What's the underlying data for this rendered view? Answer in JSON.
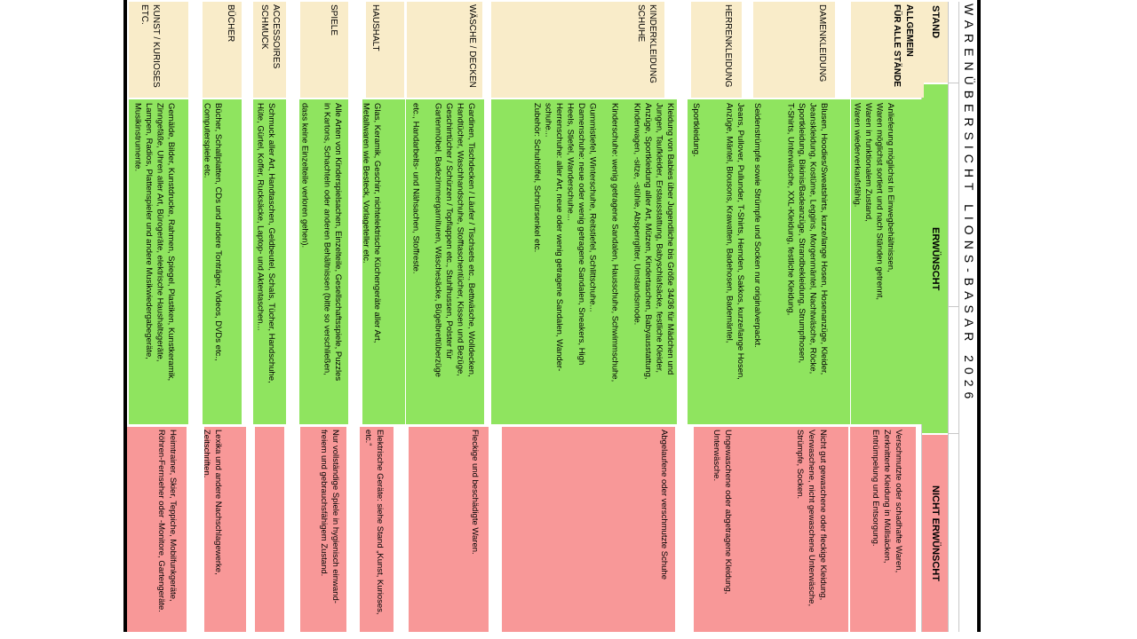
{
  "title": "WARENÜBERSICHT LIONS-BASAR 2026",
  "header": {
    "stand": "STAND",
    "erwuenscht": "ERWÜNSCHT",
    "nicht_erwuenscht": "NICHT ERWÜNSCHT"
  },
  "colors": {
    "cream": "#F9ECC9",
    "green": "#8FE45F",
    "pink": "#F89898",
    "grid": "#C8C8C8",
    "border": "#000000"
  },
  "rows": [
    {
      "id": "allgemein",
      "label_lines": [
        "ALLGEMEIN",
        "FÜR ALLE STÄNDE"
      ],
      "bold_label": true,
      "erwuenscht_lines": [
        "Anlieferung möglichst in Einwegbehältnissen,",
        "Waren möglichst sortiert und nach Ständen getrennt,",
        "Waren in funktionalem Zustand,",
        "Waren wiederverkaufsfähig."
      ],
      "nicht_erwuenscht_lines": [
        "Verschmutzte oder schadhafte Waren,",
        "Zerknitterte Kleidung in Müllsäcken,",
        "Entrümpelung und Entsorgung."
      ]
    },
    {
      "id": "damenkleidung",
      "label_lines": [
        "DAMENKLEIDUNG"
      ],
      "bold_label": false,
      "erwuenscht_lines": [
        "Blusen, Hoodies/Sweatshirts, kurze/lange Hosen, Hosenanzüge, Kleider,",
        "Jeanskleidung, Kostüme, Leggins, Morgenmäntel, Nachtwäsche, Röcke,",
        "Sportkleidung, Bikinis/Badeanzüge, Strandbekleidung, Strumpfhosen,",
        "T-Shirts, Unterwäsche, XXL-Kleidung, festliche Kleidung,",
        "",
        "",
        "Seidenstrümpfe sowie Strümpfe und Socken nur originalverpackt."
      ],
      "nicht_erwuenscht_lines": [
        "Nicht gut gewaschene oder fleckige Kleidung,",
        "Verwaschene, nicht gewaschene Unterwäsche,",
        "Strümpfe, Socken."
      ]
    },
    {
      "id": "herrenkleidung",
      "label_lines": [
        "HERRENKLEIDUNG"
      ],
      "bold_label": false,
      "erwuenscht_lines": [
        "Jeans, Pullover, Pullunder, T-Shirts, Hemden, Sakkos, kurze/lange Hosen,",
        "Anzüge, Mäntel, Blousons, Krawatten, Badehosen, Bademäntel,",
        "",
        "",
        "Sportkleidung."
      ],
      "nicht_erwuenscht_lines": [
        "Ungewaschene oder abgetragene Kleidung,",
        "Unterwäsche."
      ]
    },
    {
      "id": "kinderkleidung-schuhe",
      "label_lines": [
        "KINDERKLEIDUNG",
        "SCHUHE"
      ],
      "bold_label": false,
      "erwuenscht_lines": [
        "Kleidung von Babies über Jugendliche bis Größe 34/36 für Mädchen und",
        "Jungen, Taufkleider, Erstausstattung, Babyschlafsäcke, festliche Kleider,",
        "Anzüge, Sportkleidung aller Art, Mützen, Kindertaschen, Babyausstattung,",
        "Kinderwagen, -sitze, -stühle, Absperrgitter, Umstandsmode.",
        "",
        "Kinderschuhe: wenig getragene Sandalen, Hausschuhe, Schwimmschuhe,",
        "",
        "Gummistiefel, Winterschuhe, Reitstiefel, Schlittschuhe...",
        "Damenschuhe: neue oder wenig getragene Sandalen, Sneakers, High",
        "Heels, Stiefel, Wanderschuhe...",
        "Herrenschuhe: aller Art, neue oder wenig getragene Sandalen, Wander-",
        "schuhe...",
        "Zubehör: Schuhlöffel, Schnürsenkel etc."
      ],
      "nicht_erwuenscht_lines": [
        "Abgelaufene oder verschmutzte Schuhe"
      ]
    },
    {
      "id": "waesche-decken",
      "label_lines": [
        "WÄSCHE / DECKEN"
      ],
      "bold_label": false,
      "erwuenscht_lines": [
        "Gardinen, Tischdecken / Läufer / Tischsets etc., Bettwäsche, Wolldecken,",
        "Handtücher, Waschhandschuhe, Stofftaschentücher, Kissen und Bezüge,",
        "Geschirrtücher / Schürzen / Topflappen etc., Stuhlhussen, Polster für",
        "Gartenmöbel, Badezimmergarnituren, Wäschesäcke, Bügelbrettüberzüge",
        "",
        "etc., Handarbeits- und Nähsachen, Stoffreste."
      ],
      "nicht_erwuenscht_lines": [
        "Fleckige und beschädigte Waren."
      ]
    },
    {
      "id": "haushalt",
      "label_lines": [
        "HAUSHALT"
      ],
      "bold_label": false,
      "erwuenscht_lines": [
        "Glas, Keramik, Geschirr, nichtelektrische Küchengeräte aller Art,",
        "Metallwaren wie Besteck, Vorlageteller etc."
      ],
      "nicht_erwuenscht_lines": [
        "Elektrische Geräte: siehe Stand „Kunst, Kurioses,",
        "etc.“"
      ]
    },
    {
      "id": "spiele",
      "label_lines": [
        "SPIELE"
      ],
      "bold_label": false,
      "erwuenscht_lines": [
        "Alle Arten von Kinderspielsachen, Einzelteile, Gesellschaftsspiele, Puzzles",
        "in Kartons, Schachteln oder anderen Behältnissen (bitte so verschließen,",
        "",
        "dass keine Einzelteile verloren gehen)."
      ],
      "nicht_erwuenscht_lines": [
        "Nur vollständige Spiele in hygienisch einwand-",
        "freiem und gebrauchsfähigem Zustand."
      ]
    },
    {
      "id": "accessoires-schmuck",
      "label_lines": [
        "ACCESSOIRES",
        "SCHMUCK"
      ],
      "bold_label": false,
      "erwuenscht_lines": [
        "Schmuck aller Art, Handtaschen, Geldbeutel, Schals, Tücher, Handschuhe,",
        "Hüte, Gürtel, Koffer, Rucksäcke, Laptop- und Aktentaschen..."
      ],
      "nicht_erwuenscht_lines": []
    },
    {
      "id": "buecher",
      "label_lines": [
        "BÜCHER"
      ],
      "bold_label": false,
      "erwuenscht_lines": [
        "Bücher, Schallplatten, CDs und andere Tonträger, Videos, DVDs etc.,",
        "Computerspiele etc."
      ],
      "nicht_erwuenscht_lines": [
        "Lexika und andere Nachschlagewerke,",
        "Zeitschriften."
      ]
    },
    {
      "id": "kunst-kurioses",
      "label_lines": [
        "KUNST / KURIOSES",
        "ETC."
      ],
      "bold_label": false,
      "erwuenscht_lines": [
        "Gemälde, Bilder, Kunstdrucke, Rahmen, Spiegel, Plastiken, Kunstkeramik,",
        "Zinngefäße, Uhren aller Art, Bürogeräte, elektrische Haushaltsgeräte,",
        "Lampen, Radios, Plattenspieler und andere Musikwiedergabegeräte,",
        "Musikinstrumente."
      ],
      "nicht_erwuenscht_lines": [
        "Heimtrainer, Skier, Teppiche, Mobilfunkgeräte,",
        "Röhren-Fernseher oder -Monitore, Gartengeräte."
      ]
    }
  ]
}
